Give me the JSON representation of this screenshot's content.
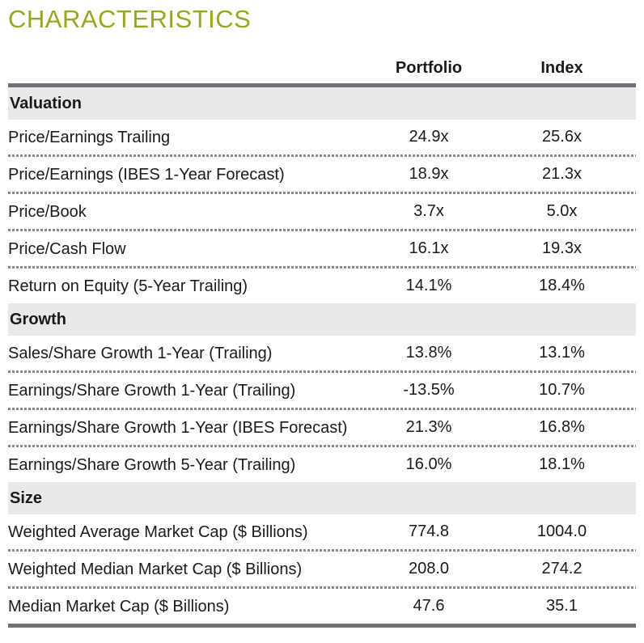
{
  "title": "CHARACTERISTICS",
  "columns": {
    "portfolio": "Portfolio",
    "index": "Index"
  },
  "sections": [
    {
      "label": "Valuation",
      "rows": [
        {
          "label": "Price/Earnings Trailing",
          "portfolio": "24.9x",
          "index": "25.6x"
        },
        {
          "label": "Price/Earnings (IBES 1-Year Forecast)",
          "portfolio": "18.9x",
          "index": "21.3x"
        },
        {
          "label": "Price/Book",
          "portfolio": "3.7x",
          "index": "5.0x"
        },
        {
          "label": "Price/Cash Flow",
          "portfolio": "16.1x",
          "index": "19.3x"
        },
        {
          "label": "Return on Equity (5-Year Trailing)",
          "portfolio": "14.1%",
          "index": "18.4%"
        }
      ]
    },
    {
      "label": "Growth",
      "rows": [
        {
          "label": "Sales/Share Growth 1-Year (Trailing)",
          "portfolio": "13.8%",
          "index": "13.1%"
        },
        {
          "label": "Earnings/Share Growth 1-Year (Trailing)",
          "portfolio": "-13.5%",
          "index": "10.7%"
        },
        {
          "label": "Earnings/Share Growth 1-Year (IBES Forecast)",
          "portfolio": "21.3%",
          "index": "16.8%"
        },
        {
          "label": "Earnings/Share Growth 5-Year (Trailing)",
          "portfolio": "16.0%",
          "index": "18.1%"
        }
      ]
    },
    {
      "label": "Size",
      "rows": [
        {
          "label": "Weighted Average Market Cap ($ Billions)",
          "portfolio": "774.8",
          "index": "1004.0"
        },
        {
          "label": "Weighted Median Market Cap ($ Billions)",
          "portfolio": "208.0",
          "index": "274.2"
        },
        {
          "label": "Median Market Cap ($ Billions)",
          "portfolio": "47.6",
          "index": "35.1"
        }
      ]
    }
  ],
  "colors": {
    "accent_green": "#98A81D",
    "rule_gray": "#6E7276",
    "band_gray": "#E9E9E9",
    "dot_gray": "#878B8E",
    "text": "#1A1A1A"
  }
}
